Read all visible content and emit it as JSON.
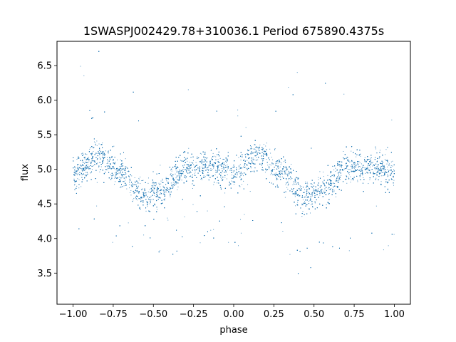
{
  "chart_data": {
    "type": "scatter",
    "title": "1SWASPJ002429.78+310036.1 Period 675890.4375s",
    "xlabel": "phase",
    "ylabel": "flux",
    "xlim": [
      -1.1,
      1.1
    ],
    "ylim": [
      3.05,
      6.85
    ],
    "xticks": [
      -1.0,
      -0.75,
      -0.5,
      -0.25,
      0.0,
      0.25,
      0.5,
      0.75,
      1.0
    ],
    "xtick_labels": [
      "−1.00",
      "−0.75",
      "−0.50",
      "−0.25",
      "0.00",
      "0.25",
      "0.50",
      "0.75",
      "1.00"
    ],
    "yticks": [
      3.5,
      4.0,
      4.5,
      5.0,
      5.5,
      6.0,
      6.5
    ],
    "ytick_labels": [
      "3.5",
      "4.0",
      "4.5",
      "5.0",
      "5.5",
      "6.0",
      "6.5"
    ],
    "grid": false,
    "marker_color": "#1f77b4",
    "marker_size_px": 1,
    "approx_point_count": 9000,
    "phase_range": [
      -1.0,
      1.0
    ],
    "approx_mean_flux": 4.95,
    "light_curve_profile": {
      "phase": [
        -1.0,
        -0.85,
        -0.7,
        -0.55,
        -0.45,
        -0.3,
        -0.15,
        0.0,
        0.15,
        0.3,
        0.45,
        0.55,
        0.7,
        0.85,
        1.0
      ],
      "flux": [
        4.95,
        5.18,
        4.95,
        4.62,
        4.7,
        5.02,
        5.05,
        4.95,
        5.18,
        4.95,
        4.62,
        4.7,
        5.02,
        5.05,
        4.95
      ]
    }
  }
}
